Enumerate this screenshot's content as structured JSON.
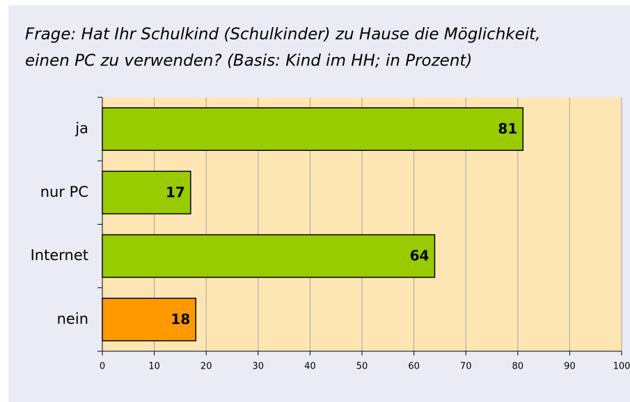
{
  "chart_data": {
    "type": "barh",
    "title": [
      "Frage: Hat Ihr Schulkind (Schulkinder) zu Hause die Möglichkeit,",
      "einen PC zu verwenden? (Basis: Kind im HH; in Prozent)"
    ],
    "categories": [
      "ja",
      "nur PC",
      "Internet",
      "nein"
    ],
    "values": [
      81,
      17,
      64,
      18
    ],
    "colors": [
      "#99cc00",
      "#99cc00",
      "#99cc00",
      "#ff9900"
    ],
    "xlim": [
      0,
      100
    ],
    "xticks": [
      0,
      10,
      20,
      30,
      40,
      50,
      60,
      70,
      80,
      90,
      100
    ],
    "grid": true
  }
}
